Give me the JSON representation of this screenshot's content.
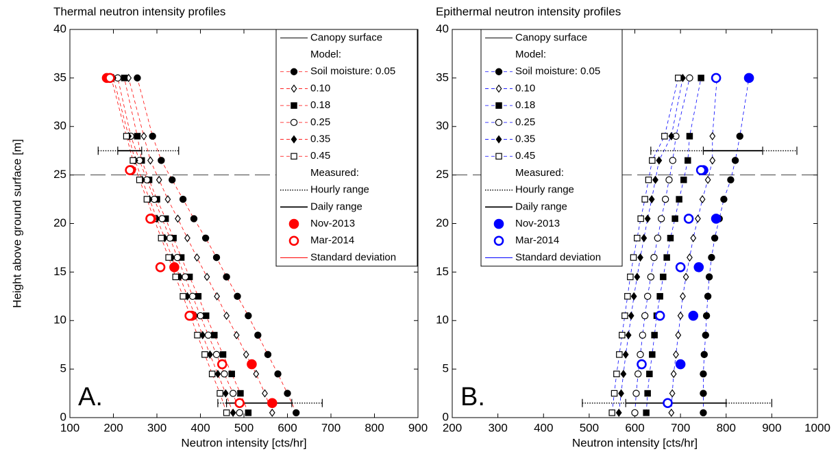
{
  "chart_data": [
    {
      "type": "scatter",
      "title": "Thermal neutron intensity profiles",
      "xlabel": "Neutron intensity [cts/hr]",
      "ylabel": "Height above ground surface [m]",
      "panel_label": "A.",
      "xlim": [
        100,
        900
      ],
      "xticks": [
        100,
        200,
        300,
        400,
        500,
        600,
        700,
        800,
        900
      ],
      "ylim": [
        0,
        40
      ],
      "yticks": [
        0,
        5,
        10,
        15,
        20,
        25,
        30,
        35,
        40
      ],
      "canopy": {
        "name": "Canopy surface",
        "y": 25
      },
      "model_header": "Model:",
      "line_color": "#ff0000",
      "y": [
        0.5,
        2.5,
        4.5,
        6.5,
        8.5,
        10.5,
        12.5,
        14.5,
        16.5,
        18.5,
        20.5,
        22.5,
        24.5,
        26.5,
        29,
        35
      ],
      "series": [
        {
          "name": "Soil moisture: 0.05",
          "marker": "circle-filled",
          "color": "#000000",
          "values": [
            620,
            600,
            578,
            555,
            532,
            510,
            485,
            460,
            437,
            412,
            385,
            360,
            335,
            310,
            290,
            255
          ]
        },
        {
          "name": "0.10",
          "marker": "diamond-open",
          "color": "#000000",
          "values": [
            565,
            548,
            528,
            505,
            483,
            460,
            438,
            415,
            392,
            370,
            348,
            325,
            305,
            285,
            270,
            235
          ]
        },
        {
          "name": "0.18",
          "marker": "square-filled",
          "color": "#000000",
          "values": [
            510,
            492,
            472,
            452,
            432,
            413,
            395,
            375,
            356,
            338,
            320,
            300,
            282,
            265,
            255,
            225
          ]
        },
        {
          "name": "0.25",
          "marker": "circle-open",
          "color": "#000000",
          "values": [
            490,
            475,
            455,
            437,
            418,
            400,
            382,
            365,
            347,
            330,
            312,
            294,
            277,
            260,
            240,
            210
          ]
        },
        {
          "name": "0.35",
          "marker": "diamond-filled",
          "color": "#000000",
          "values": [
            475,
            458,
            440,
            422,
            405,
            388,
            370,
            353,
            335,
            318,
            300,
            283,
            266,
            250,
            235,
            200
          ]
        },
        {
          "name": "0.45",
          "marker": "square-open",
          "color": "#000000",
          "values": [
            460,
            445,
            427,
            410,
            393,
            377,
            360,
            343,
            327,
            310,
            293,
            277,
            260,
            245,
            230,
            195
          ]
        }
      ],
      "measured_header": "Measured:",
      "ranges": [
        {
          "name": "Hourly range",
          "style": "dotted",
          "y": [
            1.5,
            27.5
          ],
          "low": [
            440,
            165
          ],
          "high": [
            680,
            350
          ]
        },
        {
          "name": "Daily range",
          "style": "solid",
          "y": [
            1.5,
            27.5
          ],
          "low": [
            460,
            210
          ],
          "high": [
            610,
            265
          ]
        }
      ],
      "measured": [
        {
          "name": "Nov-2013",
          "marker": "circle-filled",
          "color": "#ff0000",
          "y": [
            1.5,
            5.5,
            10.5,
            15.5,
            20.5,
            25.5,
            35
          ],
          "values": [
            565,
            518,
            380,
            340,
            287,
            240,
            185
          ]
        },
        {
          "name": "Mar-2014",
          "marker": "circle-open",
          "color": "#ff0000",
          "y": [
            1.5,
            5.5,
            10.5,
            15.5,
            20.5,
            25.5,
            35
          ],
          "values": [
            490,
            450,
            375,
            308,
            285,
            238,
            192
          ]
        }
      ],
      "std_name": "Standard deviation"
    },
    {
      "type": "scatter",
      "title": "Epithermal neutron intensity profiles",
      "xlabel": "Neutron intensity [cts/hr]",
      "panel_label": "B.",
      "xlim": [
        200,
        1000
      ],
      "xticks": [
        200,
        300,
        400,
        500,
        600,
        700,
        800,
        900,
        1000
      ],
      "ylim": [
        0,
        40
      ],
      "yticks": [
        0,
        5,
        10,
        15,
        20,
        25,
        30,
        35,
        40
      ],
      "canopy": {
        "name": "Canopy surface",
        "y": 25
      },
      "model_header": "Model:",
      "line_color": "#0000ff",
      "y": [
        0.5,
        2.5,
        4.5,
        6.5,
        8.5,
        10.5,
        12.5,
        14.5,
        16.5,
        18.5,
        20.5,
        22.5,
        24.5,
        26.5,
        29,
        35
      ],
      "series": [
        {
          "name": "Soil moisture: 0.05",
          "marker": "circle-filled",
          "color": "#000000",
          "values": [
            750,
            750,
            750,
            752,
            755,
            757,
            760,
            763,
            768,
            775,
            785,
            795,
            810,
            820,
            830,
            850
          ]
        },
        {
          "name": "0.10",
          "marker": "diamond-open",
          "color": "#000000",
          "values": [
            680,
            682,
            685,
            690,
            695,
            700,
            705,
            712,
            720,
            728,
            738,
            748,
            760,
            770,
            770,
            780
          ]
        },
        {
          "name": "0.18",
          "marker": "square-filled",
          "color": "#000000",
          "values": [
            625,
            628,
            632,
            638,
            643,
            648,
            655,
            662,
            670,
            678,
            688,
            697,
            707,
            716,
            720,
            745
          ]
        },
        {
          "name": "0.25",
          "marker": "circle-open",
          "color": "#000000",
          "values": [
            600,
            603,
            607,
            612,
            617,
            622,
            628,
            635,
            642,
            650,
            658,
            667,
            675,
            683,
            690,
            720
          ]
        },
        {
          "name": "0.35",
          "marker": "diamond-filled",
          "color": "#000000",
          "values": [
            565,
            570,
            575,
            580,
            586,
            592,
            598,
            605,
            612,
            620,
            628,
            637,
            645,
            653,
            680,
            705
          ]
        },
        {
          "name": "0.45",
          "marker": "square-open",
          "color": "#000000",
          "values": [
            550,
            555,
            560,
            566,
            572,
            578,
            584,
            590,
            597,
            605,
            613,
            622,
            630,
            638,
            665,
            695
          ]
        }
      ],
      "measured_header": "Measured:",
      "ranges": [
        {
          "name": "Hourly range",
          "style": "dotted",
          "y": [
            1.5,
            27.5
          ],
          "low": [
            485,
            635
          ],
          "high": [
            900,
            955
          ]
        },
        {
          "name": "Daily range",
          "style": "solid",
          "y": [
            1.5,
            27.5
          ],
          "low": [
            580,
            750
          ],
          "high": [
            800,
            880
          ]
        }
      ],
      "measured": [
        {
          "name": "Nov-2013",
          "marker": "circle-filled",
          "color": "#0000ff",
          "y": [
            1.5,
            5.5,
            10.5,
            15.5,
            20.5,
            25.5,
            35
          ],
          "values": [
            null,
            700,
            728,
            740,
            778,
            750,
            850
          ]
        },
        {
          "name": "Mar-2014",
          "marker": "circle-open",
          "color": "#0000ff",
          "y": [
            1.5,
            5.5,
            10.5,
            15.5,
            20.5,
            25.5,
            35
          ],
          "values": [
            672,
            615,
            655,
            700,
            718,
            745,
            778
          ]
        }
      ],
      "std_name": "Standard deviation"
    }
  ]
}
